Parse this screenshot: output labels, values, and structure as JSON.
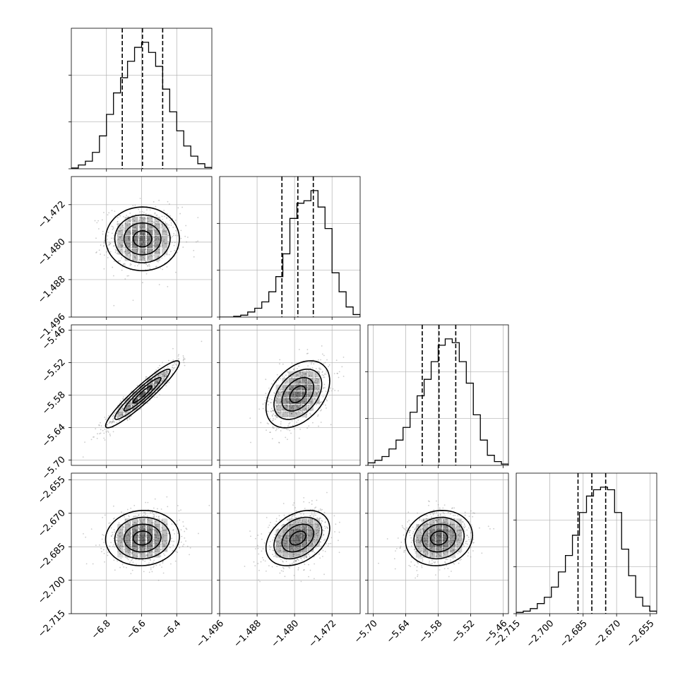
{
  "chart_data": {
    "type": "corner",
    "variables": [
      {
        "range": [
          -7.0,
          -6.2
        ],
        "ticks": [
          -6.8,
          -6.6,
          -6.4
        ],
        "tick_labels": [
          "−6.8",
          "−6.6",
          "−6.4"
        ],
        "quantiles": [
          -6.71,
          -6.595,
          -6.48
        ],
        "median": -6.595,
        "sigma": 0.105,
        "histogram": [
          0.006,
          0.03,
          0.06,
          0.13,
          0.26,
          0.43,
          0.6,
          0.72,
          0.85,
          0.96,
          1.0,
          0.92,
          0.81,
          0.63,
          0.45,
          0.3,
          0.18,
          0.1,
          0.04,
          0.01
        ]
      },
      {
        "range": [
          -1.496,
          -1.466
        ],
        "ticks": [
          -1.496,
          -1.488,
          -1.48,
          -1.472
        ],
        "tick_labels": [
          "−1.496",
          "−1.488",
          "−1.480",
          "−1.472"
        ],
        "quantiles": [
          -1.4827,
          -1.4793,
          -1.476
        ],
        "median": -1.4793,
        "sigma": 0.0034,
        "histogram": [
          0.0,
          0.0,
          0.006,
          0.015,
          0.04,
          0.07,
          0.12,
          0.2,
          0.32,
          0.5,
          0.78,
          0.9,
          0.92,
          1.0,
          0.87,
          0.7,
          0.35,
          0.2,
          0.08,
          0.02
        ]
      },
      {
        "range": [
          -5.71,
          -5.45
        ],
        "ticks": [
          -5.7,
          -5.64,
          -5.58,
          -5.52,
          -5.46
        ],
        "tick_labels": [
          "−5.70",
          "−5.64",
          "−5.58",
          "−5.52",
          "−5.46"
        ],
        "quantiles": [
          -5.6095,
          -5.5785,
          -5.5475
        ],
        "median": -5.5785,
        "sigma": 0.031,
        "histogram": [
          0.02,
          0.04,
          0.07,
          0.13,
          0.2,
          0.3,
          0.42,
          0.55,
          0.68,
          0.82,
          0.95,
          1.0,
          0.97,
          0.82,
          0.65,
          0.4,
          0.2,
          0.08,
          0.03,
          0.01
        ]
      },
      {
        "range": [
          -2.715,
          -2.652
        ],
        "ticks": [
          -2.715,
          -2.7,
          -2.685,
          -2.67,
          -2.655
        ],
        "tick_labels": [
          "−2.715",
          "−2.700",
          "−2.685",
          "−2.670",
          "−2.655"
        ],
        "quantiles": [
          -2.6873,
          -2.6811,
          -2.6749
        ],
        "median": -2.6811,
        "sigma": 0.0062,
        "histogram": [
          0.01,
          0.02,
          0.04,
          0.08,
          0.13,
          0.21,
          0.33,
          0.46,
          0.62,
          0.8,
          0.93,
          0.98,
          1.0,
          0.98,
          0.8,
          0.51,
          0.3,
          0.13,
          0.06,
          0.02
        ]
      }
    ],
    "correlations": [
      [
        1.0,
        0.0,
        0.94,
        0.05
      ],
      [
        0.0,
        1.0,
        0.4,
        0.35
      ],
      [
        0.94,
        0.4,
        1.0,
        0.1
      ],
      [
        0.05,
        0.35,
        0.1,
        1.0
      ]
    ],
    "contour_levels": [
      0.5,
      1.0,
      1.5,
      2.0
    ],
    "scatter_points_per_panel": 700,
    "grid": true,
    "colors": {
      "line": "#000000",
      "scatter": "#8c8c8c",
      "grid": "#b0b0b0",
      "density": "#000000"
    }
  }
}
